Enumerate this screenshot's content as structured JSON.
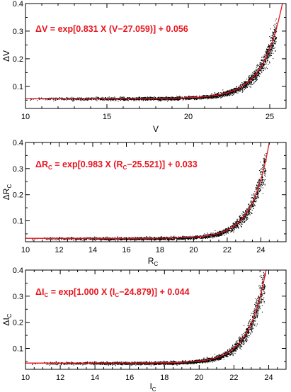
{
  "chart_data": [
    {
      "type": "scatter",
      "xlabel": "V",
      "ylabel": "ΔV",
      "xlim": [
        10,
        26
      ],
      "ylim": [
        0.02,
        0.4
      ],
      "xticks": [
        10,
        15,
        20,
        25
      ],
      "yticks": [
        0.1,
        0.2,
        0.3,
        0.4
      ],
      "annotation": "ΔV = exp[0.831 X (V−27.059)] + 0.056",
      "fit": {
        "a": 0.831,
        "m0": 27.059,
        "c": 0.056
      },
      "scatter_range": [
        10.2,
        25.4
      ],
      "fit_color": "#e8141d"
    },
    {
      "type": "scatter",
      "xlabel_main": "R",
      "xlabel_sub": "C",
      "ylabel_main": "ΔR",
      "ylabel_sub": "C",
      "xlim": [
        10,
        25.5
      ],
      "ylim": [
        0.02,
        0.4
      ],
      "xticks": [
        10,
        12,
        14,
        16,
        18,
        20,
        22,
        24
      ],
      "yticks": [
        0.1,
        0.2,
        0.3,
        0.4
      ],
      "annotation_parts": [
        "ΔR",
        "C",
        " = exp[0.983 X (R",
        "C",
        "−25.521)] + 0.033"
      ],
      "fit": {
        "a": 0.983,
        "m0": 25.521,
        "c": 0.033
      },
      "scatter_range": [
        10.3,
        24.3
      ],
      "fit_color": "#e8141d"
    },
    {
      "type": "scatter",
      "xlabel_main": "I",
      "xlabel_sub": "C",
      "ylabel_main": "ΔI",
      "ylabel_sub": "C",
      "xlim": [
        10,
        25
      ],
      "ylim": [
        0.02,
        0.4
      ],
      "xticks": [
        10,
        12,
        14,
        16,
        18,
        20,
        22,
        24
      ],
      "yticks": [
        0.1,
        0.2,
        0.3,
        0.4
      ],
      "annotation_parts": [
        "ΔI",
        "C",
        " = exp[1.000 X (I",
        "C",
        "−24.879)] + 0.044"
      ],
      "fit": {
        "a": 1.0,
        "m0": 24.879,
        "c": 0.044
      },
      "scatter_range": [
        10.3,
        23.8
      ],
      "fit_color": "#e8141d"
    }
  ]
}
